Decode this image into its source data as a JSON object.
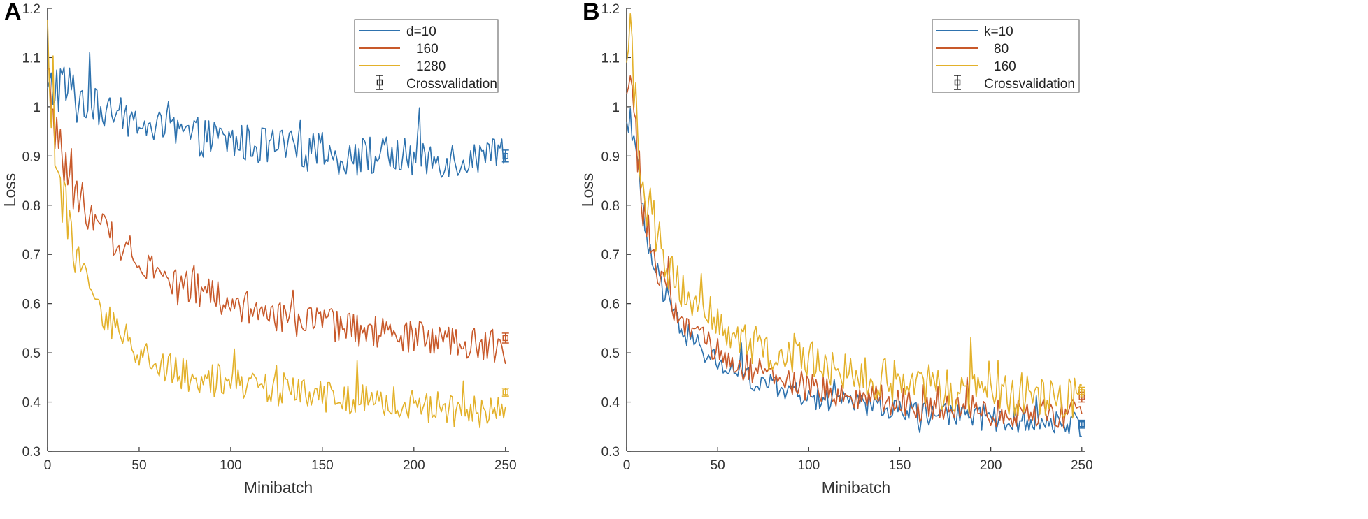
{
  "chart_data": [
    {
      "panel": "A",
      "type": "line",
      "xlabel": "Minibatch",
      "ylabel": "Loss",
      "xlim": [
        0,
        252
      ],
      "ylim": [
        0.3,
        1.2
      ],
      "xticks": [
        0,
        50,
        100,
        150,
        200,
        250
      ],
      "yticks": [
        0.3,
        0.4,
        0.5,
        0.6,
        0.7,
        0.8,
        0.9,
        1,
        1.1,
        1.2
      ],
      "legend_position": "top-right",
      "series": [
        {
          "name": "d=10",
          "label": "d=10",
          "color": "#2E72AE",
          "x": [
            0,
            2,
            5,
            8,
            12,
            16,
            20,
            25,
            30,
            40,
            50,
            60,
            70,
            80,
            90,
            100,
            110,
            120,
            130,
            140,
            150,
            160,
            170,
            180,
            190,
            200,
            210,
            220,
            230,
            240,
            250
          ],
          "values": [
            1.01,
            1.03,
            1.05,
            1.04,
            1.03,
            1.02,
            1.01,
            1.0,
            0.99,
            0.98,
            0.965,
            0.955,
            0.945,
            0.94,
            0.935,
            0.93,
            0.925,
            0.92,
            0.915,
            0.91,
            0.905,
            0.9,
            0.9,
            0.9,
            0.9,
            0.895,
            0.895,
            0.895,
            0.895,
            0.895,
            0.895
          ],
          "noise": 0.04
        },
        {
          "name": "160",
          "label": "160",
          "color": "#C8592A",
          "x": [
            0,
            2,
            5,
            8,
            12,
            16,
            20,
            25,
            30,
            40,
            50,
            60,
            70,
            80,
            90,
            100,
            110,
            120,
            130,
            140,
            150,
            160,
            170,
            180,
            190,
            200,
            210,
            220,
            230,
            240,
            250
          ],
          "values": [
            1.05,
            1.0,
            0.95,
            0.9,
            0.86,
            0.83,
            0.8,
            0.77,
            0.75,
            0.72,
            0.7,
            0.665,
            0.645,
            0.63,
            0.615,
            0.6,
            0.59,
            0.58,
            0.57,
            0.565,
            0.56,
            0.55,
            0.545,
            0.54,
            0.535,
            0.53,
            0.525,
            0.52,
            0.52,
            0.515,
            0.51
          ],
          "noise": 0.035
        },
        {
          "name": "1280",
          "label": "1280",
          "color": "#E3B12A",
          "x": [
            0,
            2,
            5,
            8,
            12,
            16,
            20,
            25,
            30,
            40,
            50,
            60,
            70,
            80,
            90,
            100,
            110,
            120,
            130,
            140,
            150,
            160,
            170,
            180,
            190,
            200,
            210,
            220,
            230,
            240,
            250
          ],
          "values": [
            1.15,
            1.0,
            0.9,
            0.82,
            0.75,
            0.7,
            0.66,
            0.62,
            0.58,
            0.535,
            0.5,
            0.48,
            0.465,
            0.455,
            0.445,
            0.44,
            0.435,
            0.43,
            0.425,
            0.42,
            0.415,
            0.41,
            0.405,
            0.4,
            0.4,
            0.395,
            0.39,
            0.385,
            0.38,
            0.38,
            0.375
          ],
          "noise": 0.035
        }
      ],
      "crossvalidation": [
        {
          "series": "d=10",
          "x": 250,
          "value": 0.9,
          "error": 0.012
        },
        {
          "series": "160",
          "x": 250,
          "value": 0.53,
          "error": 0.01
        },
        {
          "series": "1280",
          "x": 250,
          "value": 0.42,
          "error": 0.008
        }
      ],
      "crossvalidation_label": "Crossvalidation"
    },
    {
      "panel": "B",
      "type": "line",
      "xlabel": "Minibatch",
      "ylabel": "Loss",
      "xlim": [
        0,
        252
      ],
      "ylim": [
        0.3,
        1.2
      ],
      "xticks": [
        0,
        50,
        100,
        150,
        200,
        250
      ],
      "yticks": [
        0.3,
        0.4,
        0.5,
        0.6,
        0.7,
        0.8,
        0.9,
        1,
        1.1,
        1.2
      ],
      "legend_position": "top-right",
      "series": [
        {
          "name": "k=10",
          "label": "k=10",
          "color": "#2E72AE",
          "x": [
            0,
            2,
            5,
            8,
            12,
            16,
            20,
            25,
            30,
            40,
            50,
            60,
            70,
            80,
            90,
            100,
            110,
            120,
            130,
            140,
            150,
            160,
            170,
            180,
            190,
            200,
            210,
            220,
            230,
            240,
            250
          ],
          "values": [
            0.95,
            1.0,
            0.9,
            0.8,
            0.72,
            0.66,
            0.62,
            0.58,
            0.55,
            0.51,
            0.48,
            0.46,
            0.445,
            0.43,
            0.42,
            0.41,
            0.405,
            0.4,
            0.395,
            0.39,
            0.385,
            0.38,
            0.375,
            0.37,
            0.37,
            0.365,
            0.365,
            0.36,
            0.36,
            0.355,
            0.355
          ],
          "noise": 0.025
        },
        {
          "name": "80",
          "label": "80",
          "color": "#C8592A",
          "x": [
            0,
            2,
            5,
            8,
            12,
            16,
            20,
            25,
            30,
            40,
            50,
            60,
            70,
            80,
            90,
            100,
            110,
            120,
            130,
            140,
            150,
            160,
            170,
            180,
            190,
            200,
            210,
            220,
            230,
            240,
            250
          ],
          "values": [
            1.0,
            1.1,
            0.95,
            0.82,
            0.74,
            0.68,
            0.64,
            0.6,
            0.57,
            0.53,
            0.5,
            0.48,
            0.465,
            0.45,
            0.44,
            0.43,
            0.42,
            0.415,
            0.41,
            0.405,
            0.4,
            0.395,
            0.39,
            0.385,
            0.385,
            0.38,
            0.38,
            0.375,
            0.375,
            0.375,
            0.375
          ],
          "noise": 0.03
        },
        {
          "name": "160",
          "label": "160",
          "color": "#E3B12A",
          "x": [
            0,
            2,
            5,
            8,
            12,
            16,
            20,
            25,
            30,
            40,
            50,
            60,
            70,
            80,
            90,
            100,
            110,
            120,
            130,
            140,
            150,
            160,
            170,
            180,
            190,
            200,
            210,
            220,
            230,
            240,
            250
          ],
          "values": [
            1.05,
            1.15,
            1.0,
            0.9,
            0.8,
            0.74,
            0.7,
            0.66,
            0.63,
            0.6,
            0.57,
            0.54,
            0.52,
            0.5,
            0.49,
            0.48,
            0.47,
            0.46,
            0.45,
            0.445,
            0.44,
            0.435,
            0.43,
            0.425,
            0.42,
            0.42,
            0.415,
            0.415,
            0.41,
            0.41,
            0.41
          ],
          "noise": 0.045
        }
      ],
      "crossvalidation": [
        {
          "series": "k=10",
          "x": 250,
          "value": 0.355,
          "error": 0.008
        },
        {
          "series": "80",
          "x": 250,
          "value": 0.41,
          "error": 0.01
        },
        {
          "series": "160",
          "x": 250,
          "value": 0.42,
          "error": 0.01
        }
      ],
      "crossvalidation_label": "Crossvalidation"
    }
  ],
  "panels": [
    {
      "letter": "A"
    },
    {
      "letter": "B"
    }
  ],
  "colors": {
    "axis": "#333333",
    "text": "#333333",
    "crossval_marker": "#222222"
  }
}
